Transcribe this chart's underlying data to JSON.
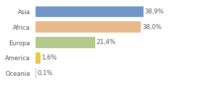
{
  "categories": [
    "Asia",
    "Africa",
    "Europa",
    "America",
    "Oceania"
  ],
  "values": [
    38.9,
    38.0,
    21.4,
    1.6,
    0.1
  ],
  "labels": [
    "38,9%",
    "38,0%",
    "21,4%",
    "1,6%",
    "0,1%"
  ],
  "bar_colors": [
    "#7096c8",
    "#e8b98a",
    "#b5c98a",
    "#e8c84a",
    "#c0c0c0"
  ],
  "background_color": "#ffffff",
  "xlim": [
    0,
    46
  ],
  "bar_height": 0.72,
  "label_fontsize": 6.2,
  "tick_fontsize": 6.2,
  "grid_color": "#dddddd",
  "text_color": "#555555"
}
